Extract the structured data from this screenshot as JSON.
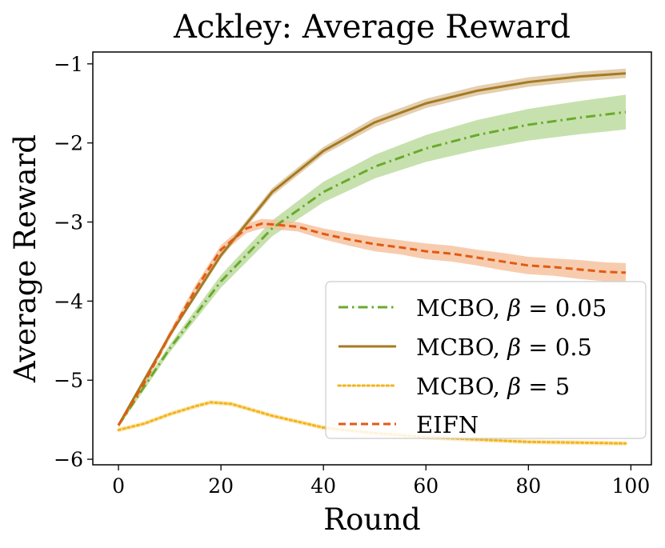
{
  "chart_data": {
    "type": "line",
    "title": "Ackley: Average Reward",
    "xlabel": "Round",
    "ylabel": "Average Reward",
    "xlim": [
      -5,
      104
    ],
    "ylim": [
      -6.07,
      -0.85
    ],
    "xticks": [
      0,
      20,
      40,
      60,
      80,
      100
    ],
    "xtick_labels": [
      "0",
      "20",
      "40",
      "60",
      "80",
      "100"
    ],
    "yticks": [
      -6,
      -5,
      -4,
      -3,
      -2,
      -1
    ],
    "ytick_labels": [
      "−6",
      "−5",
      "−4",
      "−3",
      "−2",
      "−1"
    ],
    "legend_position": "lower-right",
    "grid": false,
    "series": [
      {
        "name": "MCBO, β = 0.05",
        "legend_parts": [
          "MCBO, ",
          "β",
          " = 0.05"
        ],
        "color": "#6aaa2b",
        "band_color": "#b9d99a",
        "linestyle": "dashdot",
        "x": [
          0,
          10,
          20,
          30,
          40,
          50,
          60,
          70,
          80,
          90,
          99
        ],
        "y": [
          -5.57,
          -4.6,
          -3.75,
          -3.08,
          -2.62,
          -2.3,
          -2.07,
          -1.9,
          -1.77,
          -1.68,
          -1.61
        ],
        "band": [
          0.03,
          0.05,
          0.08,
          0.1,
          0.13,
          0.15,
          0.17,
          0.19,
          0.2,
          0.21,
          0.22
        ]
      },
      {
        "name": "MCBO, β = 0.5",
        "legend_parts": [
          "MCBO, ",
          "β",
          " = 0.5"
        ],
        "color": "#a67a22",
        "band_color": "#dcc49c",
        "linestyle": "solid",
        "x": [
          0,
          10,
          20,
          30,
          40,
          50,
          60,
          70,
          80,
          90,
          99
        ],
        "y": [
          -5.57,
          -4.43,
          -3.42,
          -2.62,
          -2.1,
          -1.74,
          -1.5,
          -1.34,
          -1.23,
          -1.16,
          -1.12
        ],
        "band": [
          0.02,
          0.03,
          0.04,
          0.05,
          0.05,
          0.06,
          0.06,
          0.06,
          0.06,
          0.06,
          0.06
        ]
      },
      {
        "name": "MCBO, β = 5",
        "legend_parts": [
          "MCBO, ",
          "β",
          " = 5"
        ],
        "color": "#f2b41c",
        "band_color": "#fbe6b0",
        "linestyle": "dotted",
        "x": [
          0,
          5,
          10,
          15,
          18,
          22,
          30,
          40,
          50,
          60,
          70,
          80,
          90,
          99
        ],
        "y": [
          -5.63,
          -5.55,
          -5.43,
          -5.33,
          -5.28,
          -5.3,
          -5.45,
          -5.6,
          -5.67,
          -5.72,
          -5.75,
          -5.78,
          -5.79,
          -5.8
        ],
        "band": [
          0.03,
          0.03,
          0.03,
          0.03,
          0.03,
          0.03,
          0.03,
          0.03,
          0.03,
          0.03,
          0.03,
          0.03,
          0.03,
          0.03
        ]
      },
      {
        "name": "EIFN",
        "legend_parts": [
          "EIFN",
          "",
          ""
        ],
        "color": "#e35a11",
        "band_color": "#f5bf9a",
        "linestyle": "dashed",
        "x": [
          0,
          5,
          10,
          15,
          20,
          25,
          28,
          30,
          35,
          40,
          45,
          50,
          55,
          60,
          65,
          70,
          75,
          80,
          85,
          90,
          95,
          99
        ],
        "y": [
          -5.57,
          -5.04,
          -4.43,
          -3.86,
          -3.35,
          -3.08,
          -3.02,
          -3.03,
          -3.06,
          -3.15,
          -3.22,
          -3.28,
          -3.32,
          -3.37,
          -3.4,
          -3.45,
          -3.5,
          -3.55,
          -3.57,
          -3.6,
          -3.63,
          -3.64
        ],
        "band": [
          0.03,
          0.04,
          0.05,
          0.06,
          0.06,
          0.06,
          0.06,
          0.06,
          0.06,
          0.07,
          0.08,
          0.09,
          0.09,
          0.1,
          0.1,
          0.1,
          0.11,
          0.11,
          0.11,
          0.12,
          0.12,
          0.12
        ]
      }
    ]
  }
}
